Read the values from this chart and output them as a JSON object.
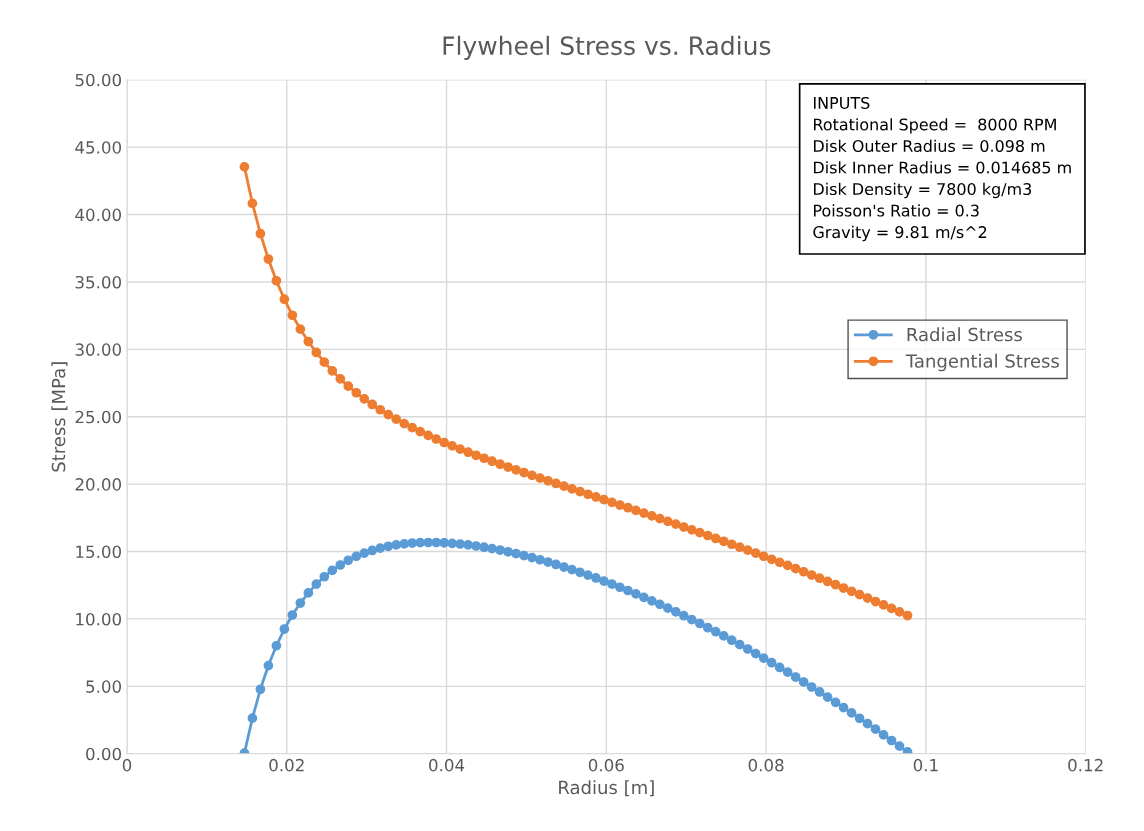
{
  "chart_data": {
    "type": "line",
    "title": "Flywheel Stress vs. Radius",
    "xlabel": "Radius [m]",
    "ylabel": "Stress [MPa]",
    "x": [
      0.0147,
      0.0157,
      0.0167,
      0.0177,
      0.0187,
      0.0197,
      0.0207,
      0.0217,
      0.0227,
      0.0237,
      0.0247,
      0.0257,
      0.0267,
      0.0277,
      0.0287,
      0.0297,
      0.0307,
      0.0317,
      0.0327,
      0.0337,
      0.0347,
      0.0357,
      0.0367,
      0.0377,
      0.0387,
      0.0397,
      0.0407,
      0.0417,
      0.0427,
      0.0437,
      0.0447,
      0.0457,
      0.0467,
      0.0477,
      0.0487,
      0.0497,
      0.0507,
      0.0517,
      0.0527,
      0.0537,
      0.0547,
      0.0557,
      0.0567,
      0.0577,
      0.0587,
      0.0597,
      0.0607,
      0.0617,
      0.0627,
      0.0637,
      0.0647,
      0.0657,
      0.0667,
      0.0677,
      0.0687,
      0.0697,
      0.0707,
      0.0717,
      0.0727,
      0.0737,
      0.0747,
      0.0757,
      0.0767,
      0.0777,
      0.0787,
      0.0797,
      0.0807,
      0.0817,
      0.0827,
      0.0837,
      0.0847,
      0.0857,
      0.0867,
      0.0877,
      0.0887,
      0.0897,
      0.0907,
      0.0917,
      0.0927,
      0.0937,
      0.0947,
      0.0957,
      0.0967,
      0.0977
    ],
    "series": [
      {
        "name": "Radial Stress",
        "color": "#5b9bd5",
        "values": [
          0.04,
          2.64,
          4.78,
          6.54,
          8.01,
          9.25,
          10.29,
          11.18,
          11.93,
          12.58,
          13.13,
          13.6,
          14.0,
          14.35,
          14.64,
          14.88,
          15.08,
          15.25,
          15.39,
          15.49,
          15.57,
          15.63,
          15.66,
          15.67,
          15.67,
          15.65,
          15.61,
          15.56,
          15.49,
          15.41,
          15.32,
          15.22,
          15.11,
          14.98,
          14.85,
          14.7,
          14.55,
          14.39,
          14.22,
          14.04,
          13.85,
          13.66,
          13.46,
          13.25,
          13.04,
          12.81,
          12.59,
          12.35,
          12.11,
          11.86,
          11.6,
          11.34,
          11.08,
          10.8,
          10.53,
          10.24,
          9.95,
          9.66,
          9.35,
          9.05,
          8.74,
          8.42,
          8.09,
          7.77,
          7.43,
          7.09,
          6.75,
          6.4,
          6.05,
          5.69,
          5.32,
          4.95,
          4.58,
          4.2,
          3.81,
          3.42,
          3.03,
          2.63,
          2.23,
          1.82,
          1.4,
          0.98,
          0.56,
          0.13
        ]
      },
      {
        "name": "Tangential Stress",
        "color": "#ed7d31",
        "values": [
          43.54,
          40.83,
          38.58,
          36.7,
          35.09,
          33.72,
          32.53,
          31.5,
          30.58,
          29.77,
          29.05,
          28.4,
          27.81,
          27.27,
          26.78,
          26.33,
          25.91,
          25.52,
          25.16,
          24.82,
          24.49,
          24.19,
          23.9,
          23.62,
          23.35,
          23.09,
          22.84,
          22.6,
          22.37,
          22.14,
          21.92,
          21.7,
          21.48,
          21.27,
          21.06,
          20.86,
          20.65,
          20.45,
          20.25,
          20.05,
          19.85,
          19.65,
          19.45,
          19.25,
          19.05,
          18.85,
          18.65,
          18.45,
          18.25,
          18.05,
          17.85,
          17.65,
          17.44,
          17.24,
          17.03,
          16.82,
          16.61,
          16.4,
          16.19,
          15.97,
          15.76,
          15.54,
          15.32,
          15.1,
          14.88,
          14.65,
          14.42,
          14.2,
          13.97,
          13.73,
          13.5,
          13.26,
          13.02,
          12.78,
          12.54,
          12.29,
          12.05,
          11.8,
          11.55,
          11.29,
          11.04,
          10.78,
          10.52,
          10.25
        ]
      }
    ],
    "xlim": [
      0,
      0.12
    ],
    "xticks": [
      0,
      0.02,
      0.04,
      0.06,
      0.08,
      0.1,
      0.12
    ],
    "ylim": [
      0,
      50
    ],
    "yticks": [
      {
        "value": 0,
        "label": "0.00"
      },
      {
        "value": 5,
        "label": "5.00"
      },
      {
        "value": 10,
        "label": "10.00"
      },
      {
        "value": 15,
        "label": "15.00"
      },
      {
        "value": 20,
        "label": "20.00"
      },
      {
        "value": 25,
        "label": "25.00"
      },
      {
        "value": 30,
        "label": "30.00"
      },
      {
        "value": 35,
        "label": "35.00"
      },
      {
        "value": 40,
        "label": "40.00"
      },
      {
        "value": 45,
        "label": "45.00"
      },
      {
        "value": 50,
        "label": "50.00"
      }
    ],
    "annotations": [
      "INPUTS",
      "Rotational Speed =  8000 RPM",
      "Disk Outer Radius = 0.098 m",
      "Disk Inner Radius = 0.014685 m",
      "Disk Density = 7800 kg/m3",
      "Poisson's Ratio = 0.3",
      "Gravity = 9.81 m/s^2"
    ],
    "grid": true,
    "legend": "right",
    "marker": "circle",
    "line_style": "solid"
  }
}
